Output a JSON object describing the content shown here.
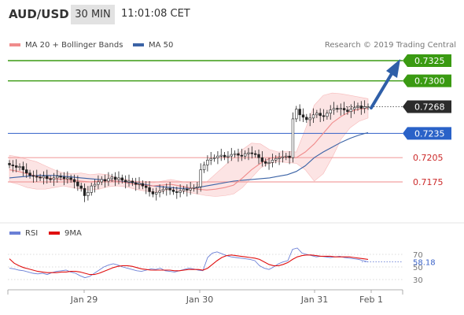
{
  "header": {
    "pair": "AUD/USD",
    "timeframe": "30 MIN",
    "time": "11:01:08 CET"
  },
  "legend": {
    "ma20": {
      "label": "MA 20 + Bollinger Bands",
      "color": "#f08c8c"
    },
    "ma50": {
      "label": "MA 50",
      "color": "#3b63a6"
    },
    "rsi": {
      "label": "RSI",
      "color": "#6a7fd6"
    },
    "ma9": {
      "label": "9MA",
      "color": "#e01010"
    }
  },
  "credit": "Research © 2019 Trading Central",
  "chart_data": [
    {
      "type": "candlestick",
      "ylim": [
        0.713,
        0.735
      ],
      "x_ticks": [
        "Jan 29",
        "Jan 30",
        "Jan 31",
        "Feb 1"
      ],
      "current_price": "0.7268",
      "levels": [
        {
          "value": 0.7325,
          "label": "0.7325",
          "kind": "target"
        },
        {
          "value": 0.73,
          "label": "0.7300",
          "kind": "target"
        },
        {
          "value": 0.7235,
          "label": "0.7235",
          "kind": "pivot"
        },
        {
          "value": 0.7205,
          "label": "0.7205",
          "kind": "support"
        },
        {
          "value": 0.7175,
          "label": "0.7175",
          "kind": "support"
        }
      ],
      "close_series": [
        0.7196,
        0.7195,
        0.7193,
        0.7194,
        0.719,
        0.7186,
        0.7183,
        0.7182,
        0.7181,
        0.718,
        0.7182,
        0.7179,
        0.7178,
        0.718,
        0.7182,
        0.7181,
        0.7179,
        0.718,
        0.7178,
        0.7175,
        0.717,
        0.7167,
        0.7158,
        0.7162,
        0.717,
        0.7172,
        0.7175,
        0.7178,
        0.7176,
        0.7179,
        0.7181,
        0.7178,
        0.718,
        0.7177,
        0.7175,
        0.7176,
        0.7174,
        0.7172,
        0.7173,
        0.717,
        0.7168,
        0.7163,
        0.716,
        0.7162,
        0.7164,
        0.7166,
        0.7167,
        0.7165,
        0.7163,
        0.7162,
        0.7164,
        0.7166,
        0.7165,
        0.7167,
        0.7168,
        0.7169,
        0.719,
        0.7196,
        0.7202,
        0.7204,
        0.7205,
        0.7207,
        0.7208,
        0.7206,
        0.7207,
        0.7209,
        0.721,
        0.7208,
        0.7207,
        0.721,
        0.7211,
        0.721,
        0.7209,
        0.7205,
        0.72,
        0.7198,
        0.7199,
        0.7202,
        0.7204,
        0.7205,
        0.7206,
        0.7207,
        0.7205,
        0.7253,
        0.7265,
        0.7258,
        0.7255,
        0.7252,
        0.7254,
        0.7258,
        0.726,
        0.7257,
        0.7256,
        0.726,
        0.7264,
        0.7266,
        0.7265,
        0.7266,
        0.7264,
        0.7262,
        0.7265,
        0.7267,
        0.7269,
        0.7266,
        0.7268,
        0.7268
      ],
      "ma20_series": [
        0.719,
        0.7188,
        0.7185,
        0.7182,
        0.718,
        0.7179,
        0.7178,
        0.7177,
        0.7176,
        0.7175,
        0.7176,
        0.7177,
        0.7176,
        0.7174,
        0.7172,
        0.7171,
        0.717,
        0.7171,
        0.7172,
        0.717,
        0.7168,
        0.7166,
        0.7165,
        0.7166,
        0.7168,
        0.7171,
        0.718,
        0.719,
        0.7198,
        0.7204,
        0.7206,
        0.7206,
        0.7205,
        0.7212,
        0.7222,
        0.7235,
        0.7248,
        0.7256,
        0.7262,
        0.7265,
        0.7266
      ],
      "bb_upper": [
        0.7208,
        0.7206,
        0.7203,
        0.72,
        0.7195,
        0.719,
        0.7186,
        0.7185,
        0.7186,
        0.7184,
        0.7185,
        0.7184,
        0.718,
        0.7178,
        0.7176,
        0.7175,
        0.7174,
        0.7176,
        0.7178,
        0.7176,
        0.7174,
        0.7172,
        0.7175,
        0.7185,
        0.7195,
        0.7205,
        0.7215,
        0.7223,
        0.7222,
        0.7215,
        0.7212,
        0.7213,
        0.7212,
        0.724,
        0.727,
        0.7282,
        0.7285,
        0.7284,
        0.7282,
        0.728,
        0.7278
      ],
      "bb_lower": [
        0.7175,
        0.7172,
        0.7168,
        0.7166,
        0.7166,
        0.7168,
        0.717,
        0.7168,
        0.7166,
        0.7165,
        0.7166,
        0.7169,
        0.717,
        0.7169,
        0.7166,
        0.7164,
        0.7162,
        0.7163,
        0.7166,
        0.7164,
        0.7162,
        0.716,
        0.7158,
        0.7157,
        0.7158,
        0.716,
        0.7168,
        0.718,
        0.7192,
        0.7198,
        0.72,
        0.7199,
        0.7198,
        0.719,
        0.7176,
        0.7185,
        0.7205,
        0.7228,
        0.7242,
        0.725,
        0.7254
      ],
      "ma50_series": [
        0.718,
        0.7181,
        0.7182,
        0.7183,
        0.7183,
        0.7183,
        0.7182,
        0.7181,
        0.718,
        0.7179,
        0.7178,
        0.7177,
        0.7176,
        0.7175,
        0.7174,
        0.7172,
        0.717,
        0.7169,
        0.7168,
        0.7167,
        0.7167,
        0.7168,
        0.717,
        0.7172,
        0.7174,
        0.7176,
        0.7177,
        0.7178,
        0.7179,
        0.718,
        0.7182,
        0.7184,
        0.7188,
        0.7195,
        0.7205,
        0.7212,
        0.7218,
        0.7224,
        0.7229,
        0.7233,
        0.7236
      ]
    },
    {
      "type": "line",
      "ylim": [
        20,
        90
      ],
      "y_ticks": [
        70,
        50,
        30
      ],
      "current_value": "58.18",
      "x_ticks": [
        "Jan 29",
        "Jan 30",
        "Jan 31",
        "Feb 1"
      ],
      "series": [
        {
          "name": "RSI",
          "values": [
            48,
            47,
            45,
            44,
            42,
            40,
            39,
            40,
            38,
            41,
            43,
            44,
            45,
            42,
            40,
            36,
            33,
            35,
            40,
            45,
            50,
            53,
            55,
            53,
            50,
            48,
            46,
            44,
            43,
            45,
            47,
            46,
            48,
            44,
            43,
            42,
            44,
            46,
            48,
            47,
            45,
            44,
            65,
            72,
            74,
            71,
            68,
            66,
            65,
            64,
            63,
            62,
            60,
            52,
            48,
            46,
            50,
            55,
            58,
            60,
            78,
            80,
            72,
            70,
            68,
            66,
            67,
            66,
            65,
            66,
            67,
            65,
            64,
            63,
            62,
            60,
            58
          ]
        },
        {
          "name": "9MA",
          "values": [
            63,
            56,
            52,
            49,
            47,
            45,
            43,
            42,
            41,
            41,
            41,
            42,
            42,
            43,
            43,
            42,
            40,
            38,
            38,
            40,
            43,
            46,
            49,
            51,
            52,
            52,
            51,
            49,
            47,
            46,
            45,
            45,
            45,
            45,
            45,
            44,
            44,
            45,
            46,
            46,
            46,
            45,
            48,
            54,
            60,
            65,
            68,
            69,
            68,
            67,
            66,
            65,
            64,
            62,
            58,
            54,
            52,
            52,
            54,
            57,
            62,
            66,
            68,
            69,
            69,
            68,
            67,
            67,
            67,
            66,
            66,
            66,
            66,
            65,
            64,
            63,
            62
          ]
        }
      ]
    }
  ]
}
